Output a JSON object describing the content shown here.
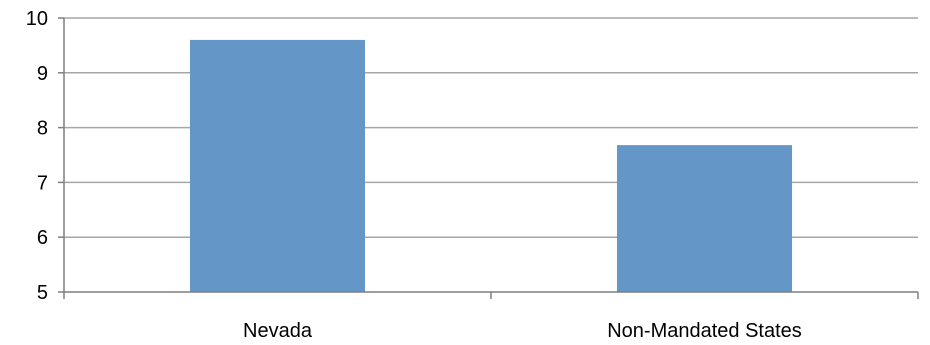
{
  "chart_data": {
    "type": "bar",
    "title": "",
    "xlabel": "",
    "ylabel": "",
    "categories": [
      "Nevada",
      "Non-Mandated States"
    ],
    "values": [
      9.6,
      7.68
    ],
    "ylim": [
      5,
      10
    ],
    "yticks": [
      "5",
      "6",
      "7",
      "8",
      "9",
      "10"
    ],
    "grid": true,
    "legend": "none",
    "bar_color": "#6596c8",
    "grid_color": "#a6a6a6"
  }
}
